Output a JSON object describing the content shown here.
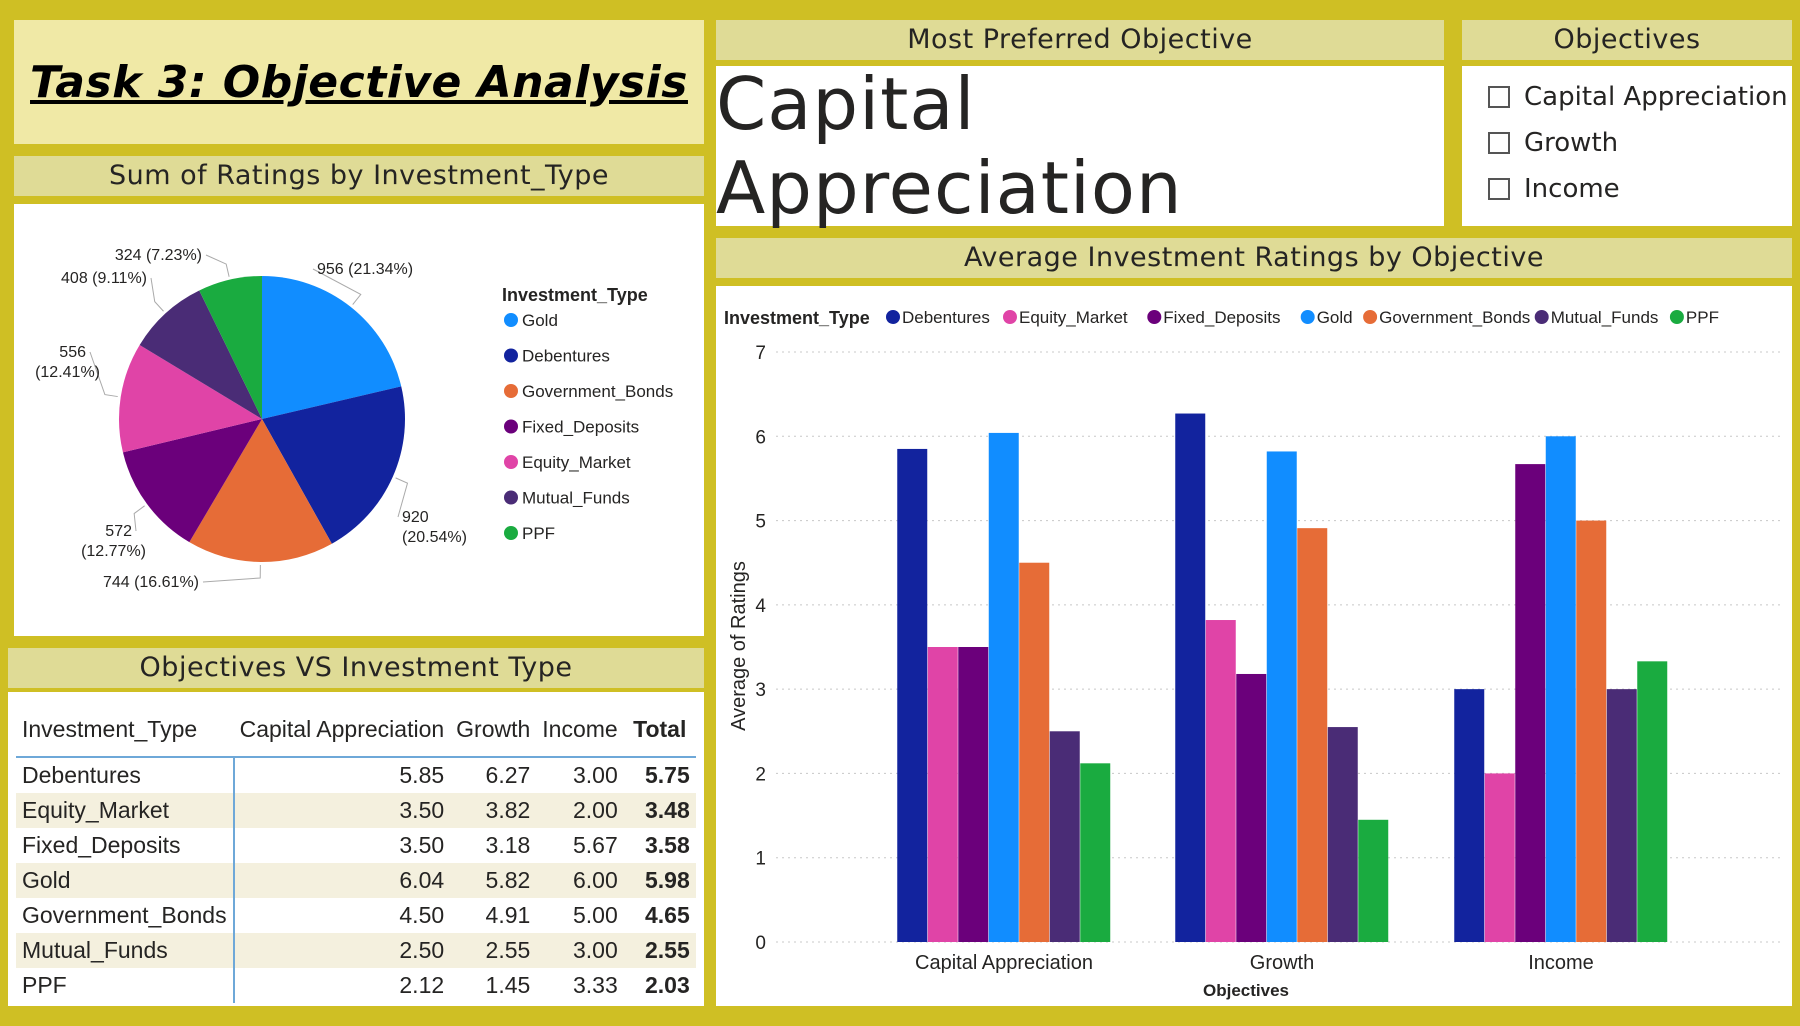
{
  "title": "Task 3: Objective Analysis",
  "card": {
    "header": "Most Preferred Objective",
    "value": "Capital Appreciation"
  },
  "slicer": {
    "header": "Objectives",
    "items": [
      "Capital Appreciation",
      "Growth",
      "Income"
    ]
  },
  "colors": {
    "Gold": "#118dff",
    "Debentures": "#12239e",
    "Government_Bonds": "#e66c37",
    "Fixed_Deposits": "#6b007b",
    "Equity_Market": "#e044a7",
    "Mutual_Funds": "#4a2c76",
    "PPF": "#1aab40"
  },
  "chart_data": [
    {
      "type": "pie",
      "title": "Sum of Ratings by Investment_Type",
      "legend_title": "Investment_Type",
      "legend_position": "right",
      "categories": [
        "Gold",
        "Debentures",
        "Government_Bonds",
        "Fixed_Deposits",
        "Equity_Market",
        "Mutual_Funds",
        "PPF"
      ],
      "values": [
        956,
        920,
        744,
        572,
        556,
        408,
        324
      ],
      "labels": [
        "956 (21.34%)",
        "920 (20.54%)",
        "744 (16.61%)",
        "572 (12.77%)",
        "556 (12.41%)",
        "408 (9.11%)",
        "324 (7.23%)"
      ]
    },
    {
      "type": "bar",
      "title": "Average Investment Ratings by Objective",
      "legend_title": "Investment_Type",
      "legend_position": "top",
      "xlabel": "Objectives",
      "ylabel": "Average of Ratings",
      "ylim": [
        0,
        7
      ],
      "yticks": [
        "0",
        "1",
        "2",
        "3",
        "4",
        "5",
        "6",
        "7"
      ],
      "grid": true,
      "categories": [
        "Capital Appreciation",
        "Growth",
        "Income"
      ],
      "series": [
        {
          "name": "Debentures",
          "values": [
            5.85,
            6.27,
            3.0
          ]
        },
        {
          "name": "Equity_Market",
          "values": [
            3.5,
            3.82,
            2.0
          ]
        },
        {
          "name": "Fixed_Deposits",
          "values": [
            3.5,
            3.18,
            5.67
          ]
        },
        {
          "name": "Gold",
          "values": [
            6.04,
            5.82,
            6.0
          ]
        },
        {
          "name": "Government_Bonds",
          "values": [
            4.5,
            4.91,
            5.0
          ]
        },
        {
          "name": "Mutual_Funds",
          "values": [
            2.5,
            2.55,
            3.0
          ]
        },
        {
          "name": "PPF",
          "values": [
            2.12,
            1.45,
            3.33
          ]
        }
      ]
    },
    {
      "type": "table",
      "title": "Objectives VS Investment Type",
      "columns": [
        "Investment_Type",
        "Capital Appreciation",
        "Growth",
        "Income",
        "Total"
      ],
      "rows": [
        [
          "Debentures",
          "5.85",
          "6.27",
          "3.00",
          "5.75"
        ],
        [
          "Equity_Market",
          "3.50",
          "3.82",
          "2.00",
          "3.48"
        ],
        [
          "Fixed_Deposits",
          "3.50",
          "3.18",
          "5.67",
          "3.58"
        ],
        [
          "Gold",
          "6.04",
          "5.82",
          "6.00",
          "5.98"
        ],
        [
          "Government_Bonds",
          "4.50",
          "4.91",
          "5.00",
          "4.65"
        ],
        [
          "Mutual_Funds",
          "2.50",
          "2.55",
          "3.00",
          "2.55"
        ],
        [
          "PPF",
          "2.12",
          "1.45",
          "3.33",
          "2.03"
        ]
      ]
    }
  ]
}
